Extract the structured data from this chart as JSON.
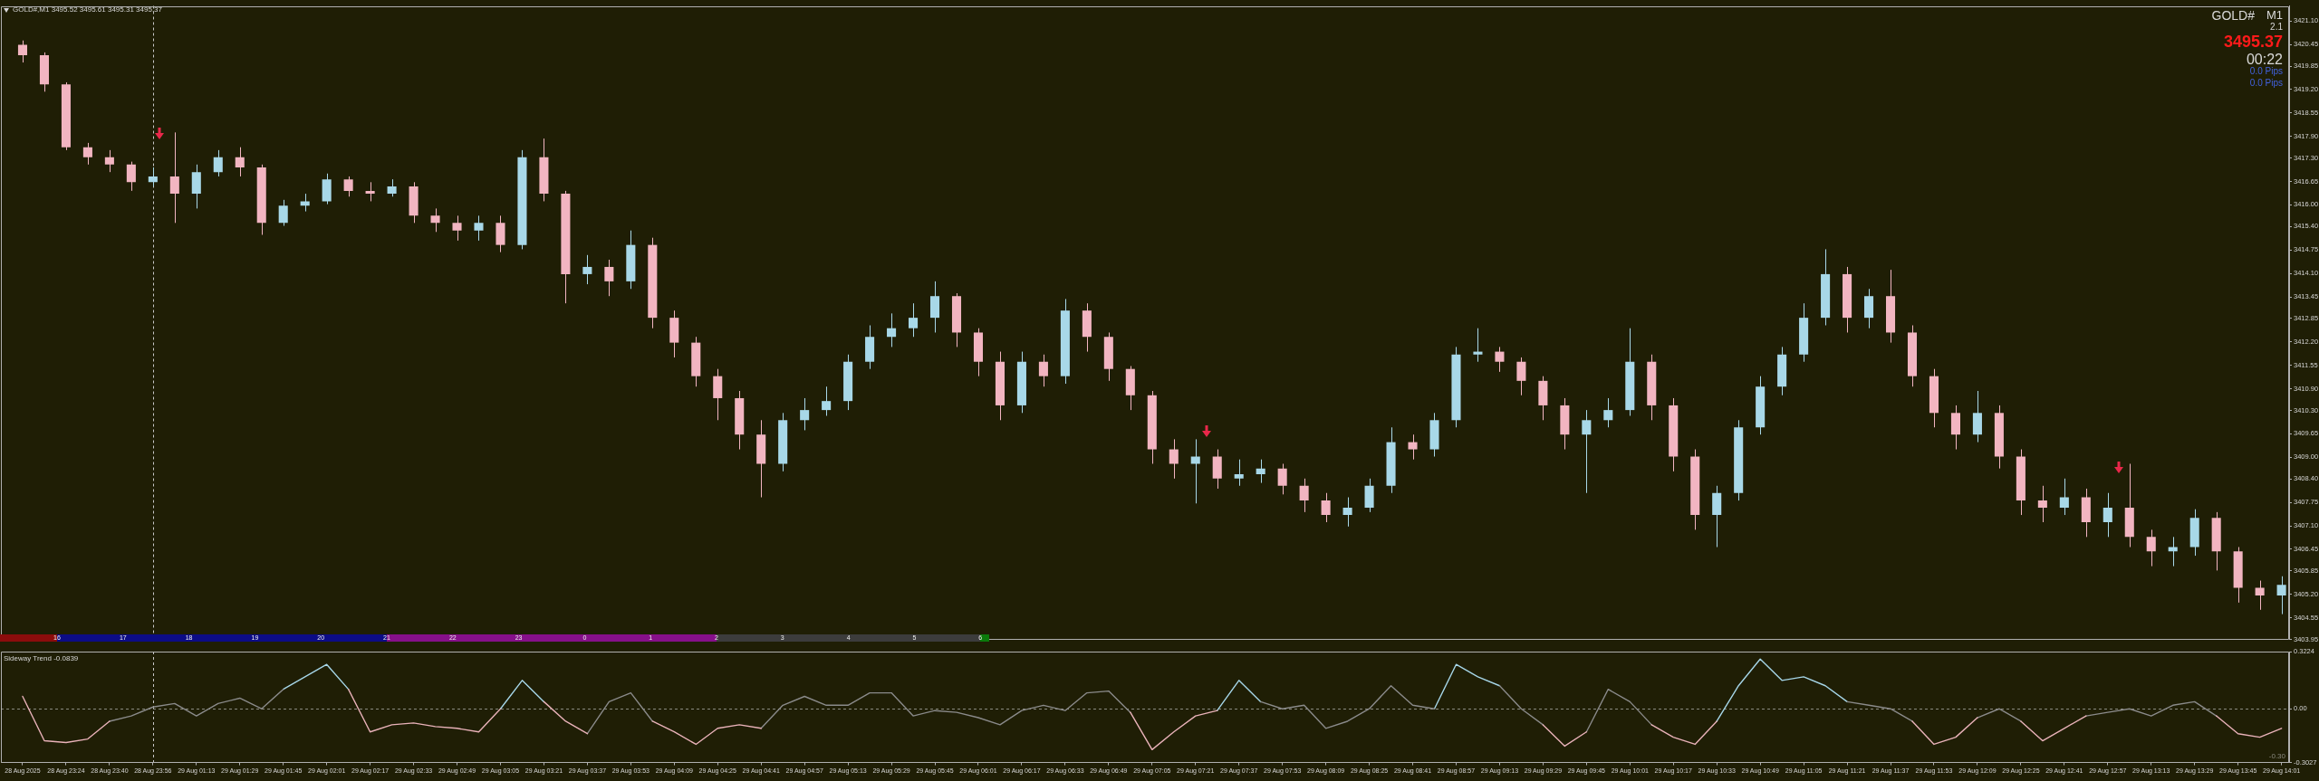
{
  "chart_data": [
    {
      "type": "candlestick",
      "title": "GOLD#,M1 3495.52 3495.61 3495.31 3495.37",
      "annotations": [
        "GOLD#",
        "M1",
        "2.1",
        "3495.37",
        "00:22",
        "0.0 Pips",
        "0.0 Pips",
        "16",
        "17",
        "18",
        "19",
        "20",
        "21",
        "22",
        "23",
        "0",
        "1",
        "2",
        "3",
        "4",
        "5",
        "6"
      ],
      "categories": [
        "28 Aug 2025",
        null,
        "28 Aug 23:24",
        null,
        "28 Aug 23:40",
        null,
        "28 Aug 23:56",
        null,
        "29 Aug 01:13",
        null,
        "29 Aug 01:29",
        null,
        "29 Aug 01:45",
        null,
        "29 Aug 02:01",
        null,
        "29 Aug 02:17",
        null,
        "29 Aug 02:33",
        null,
        "29 Aug 02:49",
        null,
        "29 Aug 03:05",
        null,
        "29 Aug 03:21",
        null,
        "29 Aug 03:37",
        null,
        "29 Aug 03:53",
        null,
        "29 Aug 04:09",
        null,
        "29 Aug 04:25",
        null,
        "29 Aug 04:41",
        null,
        "29 Aug 04:57",
        null,
        "29 Aug 05:13",
        null,
        "29 Aug 05:29",
        null,
        "29 Aug 05:45",
        null,
        "29 Aug 06:01",
        null,
        "29 Aug 06:17",
        null,
        "29 Aug 06:33",
        null,
        "29 Aug 06:49",
        null,
        "29 Aug 07:05",
        null,
        "29 Aug 07:21",
        null,
        "29 Aug 07:37",
        null,
        "29 Aug 07:53",
        null,
        "29 Aug 08:09",
        null,
        "29 Aug 08:25",
        null,
        "29 Aug 08:41",
        null,
        "29 Aug 08:57",
        null,
        "29 Aug 09:13",
        null,
        "29 Aug 09:29",
        null,
        "29 Aug 09:45",
        null,
        "29 Aug 10:01",
        null,
        "29 Aug 10:17",
        null,
        "29 Aug 10:33",
        null,
        "29 Aug 10:49",
        null,
        "29 Aug 11:05",
        null,
        "29 Aug 11:21",
        null,
        "29 Aug 11:37",
        null,
        "29 Aug 11:53",
        null,
        "29 Aug 12:09",
        null,
        "29 Aug 12:25",
        null,
        "29 Aug 12:41",
        null,
        "29 Aug 12:57",
        null,
        "29 Aug 13:13",
        null,
        "29 Aug 13:29",
        null,
        "29 Aug 13:45",
        null,
        "29 Aug 14:01"
      ],
      "ohlc": [
        [
          3420.44,
          3420.56,
          3419.95,
          3420.15
        ],
        [
          3420.15,
          3420.23,
          3419.14,
          3419.34
        ],
        [
          3419.34,
          3419.4,
          3417.52,
          3417.6
        ],
        [
          3417.6,
          3417.72,
          3417.12,
          3417.32
        ],
        [
          3417.32,
          3417.52,
          3416.91,
          3417.12
        ],
        [
          3417.12,
          3417.2,
          3416.39,
          3416.63
        ],
        [
          3416.63,
          3417.04,
          3416.51,
          3416.79
        ],
        [
          3416.79,
          3418.01,
          3415.5,
          3416.31
        ],
        [
          3416.31,
          3417.12,
          3415.9,
          3416.91
        ],
        [
          3416.91,
          3417.52,
          3416.79,
          3417.32
        ],
        [
          3417.32,
          3417.6,
          3416.79,
          3417.04
        ],
        [
          3417.04,
          3417.12,
          3415.17,
          3415.5
        ],
        [
          3415.5,
          3416.14,
          3415.42,
          3415.98
        ],
        [
          3415.98,
          3416.31,
          3415.82,
          3416.1
        ],
        [
          3416.1,
          3416.87,
          3416.02,
          3416.71
        ],
        [
          3416.71,
          3416.79,
          3416.23,
          3416.39
        ],
        [
          3416.39,
          3416.63,
          3416.1,
          3416.31
        ],
        [
          3416.31,
          3416.71,
          3416.23,
          3416.51
        ],
        [
          3416.51,
          3416.63,
          3415.5,
          3415.7
        ],
        [
          3415.7,
          3415.9,
          3415.25,
          3415.5
        ],
        [
          3415.5,
          3415.7,
          3415.01,
          3415.29
        ],
        [
          3415.29,
          3415.7,
          3415.01,
          3415.5
        ],
        [
          3415.5,
          3415.7,
          3414.69,
          3414.89
        ],
        [
          3414.89,
          3417.52,
          3414.77,
          3417.32
        ],
        [
          3417.32,
          3417.84,
          3416.1,
          3416.31
        ],
        [
          3416.31,
          3416.39,
          3413.27,
          3414.08
        ],
        [
          3414.08,
          3414.61,
          3413.8,
          3414.28
        ],
        [
          3414.28,
          3414.48,
          3413.47,
          3413.88
        ],
        [
          3413.88,
          3415.29,
          3413.67,
          3414.89
        ],
        [
          3414.89,
          3415.09,
          3412.58,
          3412.87
        ],
        [
          3412.87,
          3413.07,
          3411.77,
          3412.18
        ],
        [
          3412.18,
          3412.34,
          3410.96,
          3411.25
        ],
        [
          3411.25,
          3411.45,
          3410.03,
          3410.64
        ],
        [
          3410.64,
          3410.84,
          3409.22,
          3409.63
        ],
        [
          3409.63,
          3410.03,
          3407.89,
          3408.82
        ],
        [
          3408.82,
          3410.23,
          3408.61,
          3410.03
        ],
        [
          3410.03,
          3410.64,
          3409.75,
          3410.31
        ],
        [
          3410.31,
          3410.96,
          3410.15,
          3410.56
        ],
        [
          3410.56,
          3411.85,
          3410.31,
          3411.65
        ],
        [
          3411.65,
          3412.66,
          3411.45,
          3412.34
        ],
        [
          3412.34,
          3412.99,
          3412.06,
          3412.58
        ],
        [
          3412.58,
          3413.27,
          3412.34,
          3412.87
        ],
        [
          3412.87,
          3413.88,
          3412.46,
          3413.47
        ],
        [
          3413.47,
          3413.55,
          3412.06,
          3412.46
        ],
        [
          3412.46,
          3412.58,
          3411.25,
          3411.65
        ],
        [
          3411.65,
          3411.93,
          3410.03,
          3410.44
        ],
        [
          3410.44,
          3411.93,
          3410.23,
          3411.65
        ],
        [
          3411.65,
          3411.85,
          3410.96,
          3411.25
        ],
        [
          3411.25,
          3413.39,
          3411.04,
          3413.07
        ],
        [
          3413.07,
          3413.27,
          3411.93,
          3412.34
        ],
        [
          3412.34,
          3412.46,
          3411.12,
          3411.45
        ],
        [
          3411.45,
          3411.53,
          3410.31,
          3410.72
        ],
        [
          3410.72,
          3410.84,
          3408.82,
          3409.22
        ],
        [
          3409.22,
          3409.5,
          3408.41,
          3408.82
        ],
        [
          3408.82,
          3409.5,
          3407.72,
          3409.02
        ],
        [
          3409.02,
          3409.22,
          3408.13,
          3408.41
        ],
        [
          3408.41,
          3408.94,
          3408.21,
          3408.53
        ],
        [
          3408.53,
          3408.94,
          3408.29,
          3408.69
        ],
        [
          3408.69,
          3408.82,
          3407.97,
          3408.21
        ],
        [
          3408.21,
          3408.41,
          3407.48,
          3407.8
        ],
        [
          3407.8,
          3408.01,
          3407.2,
          3407.4
        ],
        [
          3407.4,
          3407.89,
          3407.08,
          3407.6
        ],
        [
          3407.6,
          3408.41,
          3407.48,
          3408.21
        ],
        [
          3408.21,
          3409.83,
          3408.01,
          3409.42
        ],
        [
          3409.42,
          3409.63,
          3408.94,
          3409.22
        ],
        [
          3409.22,
          3410.23,
          3409.02,
          3410.03
        ],
        [
          3410.03,
          3412.06,
          3409.83,
          3411.85
        ],
        [
          3411.85,
          3412.58,
          3411.65,
          3411.93
        ],
        [
          3411.93,
          3412.06,
          3411.37,
          3411.65
        ],
        [
          3411.65,
          3411.77,
          3410.72,
          3411.12
        ],
        [
          3411.12,
          3411.25,
          3410.03,
          3410.44
        ],
        [
          3410.44,
          3410.64,
          3409.22,
          3409.63
        ],
        [
          3409.63,
          3410.31,
          3408.01,
          3410.03
        ],
        [
          3410.03,
          3410.64,
          3409.83,
          3410.31
        ],
        [
          3410.31,
          3412.58,
          3410.15,
          3411.65
        ],
        [
          3411.65,
          3411.85,
          3410.03,
          3410.44
        ],
        [
          3410.44,
          3410.64,
          3408.61,
          3409.02
        ],
        [
          3409.02,
          3409.22,
          3406.99,
          3407.4
        ],
        [
          3407.4,
          3408.21,
          3406.51,
          3408.01
        ],
        [
          3408.01,
          3410.03,
          3407.8,
          3409.83
        ],
        [
          3409.83,
          3411.25,
          3409.63,
          3410.96
        ],
        [
          3410.96,
          3412.06,
          3410.72,
          3411.85
        ],
        [
          3411.85,
          3413.27,
          3411.65,
          3412.87
        ],
        [
          3412.87,
          3414.77,
          3412.66,
          3414.08
        ],
        [
          3414.08,
          3414.28,
          3412.46,
          3412.87
        ],
        [
          3412.87,
          3413.67,
          3412.58,
          3413.47
        ],
        [
          3413.47,
          3414.2,
          3412.18,
          3412.46
        ],
        [
          3412.46,
          3412.66,
          3410.96,
          3411.25
        ],
        [
          3411.25,
          3411.45,
          3409.83,
          3410.23
        ],
        [
          3410.23,
          3410.44,
          3409.22,
          3409.63
        ],
        [
          3409.63,
          3410.84,
          3409.42,
          3410.23
        ],
        [
          3410.23,
          3410.44,
          3408.69,
          3409.02
        ],
        [
          3409.02,
          3409.22,
          3407.4,
          3407.8
        ],
        [
          3407.8,
          3408.21,
          3407.2,
          3407.6
        ],
        [
          3407.6,
          3408.41,
          3407.4,
          3407.89
        ],
        [
          3407.89,
          3408.13,
          3406.79,
          3407.2
        ],
        [
          3407.2,
          3408.01,
          3406.79,
          3407.6
        ],
        [
          3407.6,
          3408.82,
          3406.51,
          3406.79
        ],
        [
          3406.79,
          3406.99,
          3405.98,
          3406.39
        ],
        [
          3406.39,
          3406.79,
          3405.98,
          3406.51
        ],
        [
          3406.51,
          3407.56,
          3406.27,
          3407.32
        ],
        [
          3407.32,
          3407.48,
          3405.86,
          3406.39
        ],
        [
          3406.39,
          3406.51,
          3404.97,
          3405.38
        ],
        [
          3405.38,
          3405.58,
          3404.77,
          3405.17
        ],
        [
          3405.17,
          3405.7,
          3404.65,
          3405.46
        ]
      ],
      "colors": [
        "#f2b5c1",
        "#f2b5c1",
        "#f2b5c1",
        "#f2b5c1",
        "#f2b5c1",
        "#f2b5c1",
        "#a8d8e8",
        "#f2b5c1",
        "#a8d8e8",
        "#a8d8e8",
        "#f2b5c1",
        "#f2b5c1",
        "#a8d8e8",
        "#a8d8e8",
        "#a8d8e8",
        "#f2b5c1",
        "#f2b5c1",
        "#a8d8e8",
        "#f2b5c1",
        "#f2b5c1",
        "#f2b5c1",
        "#a8d8e8",
        "#f2b5c1",
        "#a8d8e8",
        "#f2b5c1",
        "#f2b5c1",
        "#a8d8e8",
        "#f2b5c1",
        "#a8d8e8",
        "#f2b5c1",
        "#f2b5c1",
        "#f2b5c1",
        "#f2b5c1",
        "#f2b5c1",
        "#f2b5c1",
        "#a8d8e8",
        "#a8d8e8",
        "#a8d8e8",
        "#a8d8e8",
        "#a8d8e8",
        "#a8d8e8",
        "#a8d8e8",
        "#a8d8e8",
        "#f2b5c1",
        "#f2b5c1",
        "#f2b5c1",
        "#a8d8e8",
        "#f2b5c1",
        "#a8d8e8",
        "#f2b5c1",
        "#f2b5c1",
        "#f2b5c1",
        "#f2b5c1",
        "#f2b5c1",
        "#a8d8e8",
        "#f2b5c1",
        "#a8d8e8",
        "#a8d8e8",
        "#f2b5c1",
        "#f2b5c1",
        "#f2b5c1",
        "#a8d8e8",
        "#a8d8e8",
        "#a8d8e8",
        "#f2b5c1",
        "#a8d8e8",
        "#a8d8e8",
        "#a8d8e8",
        "#f2b5c1",
        "#f2b5c1",
        "#f2b5c1",
        "#f2b5c1",
        "#a8d8e8",
        "#a8d8e8",
        "#a8d8e8",
        "#f2b5c1",
        "#f2b5c1",
        "#f2b5c1",
        "#a8d8e8",
        "#a8d8e8",
        "#a8d8e8",
        "#a8d8e8",
        "#a8d8e8",
        "#a8d8e8",
        "#f2b5c1",
        "#a8d8e8",
        "#f2b5c1",
        "#f2b5c1",
        "#f2b5c1",
        "#f2b5c1",
        "#a8d8e8",
        "#f2b5c1",
        "#f2b5c1",
        "#f2b5c1",
        "#a8d8e8",
        "#f2b5c1",
        "#a8d8e8",
        "#f2b5c1",
        "#f2b5c1",
        "#a8d8e8",
        "#a8d8e8",
        "#f2b5c1",
        "#f2b5c1",
        "#f2b5c1",
        "#a8d8e8"
      ],
      "ylim": [
        3403.95,
        3421.52
      ],
      "yticks": [
        {
          "value": 3421.1,
          "label": "3421.10"
        },
        3420.45,
        3419.85,
        {
          "value": 3419.2,
          "label": "3419.20"
        },
        3418.55,
        {
          "value": 3417.9,
          "label": "3417.90"
        },
        {
          "value": 3417.3,
          "label": "3417.30"
        },
        3416.65,
        {
          "value": 3416,
          "label": "3416.00"
        },
        {
          "value": 3415.4,
          "label": "3415.40"
        },
        3414.75,
        {
          "value": 3414.1,
          "label": "3414.10"
        },
        3413.45,
        3412.85,
        {
          "value": 3412.2,
          "label": "3412.20"
        },
        3411.55,
        {
          "value": 3410.9,
          "label": "3410.90"
        },
        {
          "value": 3410.3,
          "label": "3410.30"
        },
        3409.65,
        {
          "value": 3409,
          "label": "3409.00"
        },
        {
          "value": 3408.4,
          "label": "3408.40"
        },
        3407.75,
        {
          "value": 3407.1,
          "label": "3407.10"
        },
        3406.45,
        3405.85,
        {
          "value": 3405.2,
          "label": "3405.20"
        },
        3404.55,
        3403.95
      ],
      "tick_labels": "y",
      "ref_lines": [
        {
          "axis": "x",
          "value": "28 Aug 23:56",
          "color": "#c8c8c8",
          "line_style": "dashed"
        }
      ]
    },
    {
      "type": "line",
      "title": "Sideway Trend -0.0839",
      "categories": [
        "28 Aug 2025",
        null,
        "28 Aug 23:24",
        null,
        "28 Aug 23:40",
        null,
        "28 Aug 23:56",
        null,
        "29 Aug 01:13",
        null,
        "29 Aug 01:29",
        null,
        "29 Aug 01:45",
        null,
        "29 Aug 02:01",
        null,
        "29 Aug 02:17",
        null,
        "29 Aug 02:33",
        null,
        "29 Aug 02:49",
        null,
        "29 Aug 03:05",
        null,
        "29 Aug 03:21",
        null,
        "29 Aug 03:37",
        null,
        "29 Aug 03:53",
        null,
        "29 Aug 04:09",
        null,
        "29 Aug 04:25",
        null,
        "29 Aug 04:41",
        null,
        "29 Aug 04:57",
        null,
        "29 Aug 05:13",
        null,
        "29 Aug 05:29",
        null,
        "29 Aug 05:45",
        null,
        "29 Aug 06:01",
        null,
        "29 Aug 06:17",
        null,
        "29 Aug 06:33",
        null,
        "29 Aug 06:49",
        null,
        "29 Aug 07:05",
        null,
        "29 Aug 07:21",
        null,
        "29 Aug 07:37",
        null,
        "29 Aug 07:53",
        null,
        "29 Aug 08:09",
        null,
        "29 Aug 08:25",
        null,
        "29 Aug 08:41",
        null,
        "29 Aug 08:57",
        null,
        "29 Aug 09:13",
        null,
        "29 Aug 09:29",
        null,
        "29 Aug 09:45",
        null,
        "29 Aug 10:01",
        null,
        "29 Aug 10:17",
        null,
        "29 Aug 10:33",
        null,
        "29 Aug 10:49",
        null,
        "29 Aug 11:05",
        null,
        "29 Aug 11:21",
        null,
        "29 Aug 11:37",
        null,
        "29 Aug 11:53",
        null,
        "29 Aug 12:09",
        null,
        "29 Aug 12:25",
        null,
        "29 Aug 12:41",
        null,
        "29 Aug 12:57",
        null,
        "29 Aug 13:13",
        null,
        "29 Aug 13:29",
        null,
        "29 Aug 13:45",
        null,
        "29 Aug 14:01"
      ],
      "series": [
        {
          "color": "#e9b2b9",
          "values": [
            0.07,
            -0.18,
            -0.19,
            -0.17,
            -0.07,
            null,
            null,
            null,
            null,
            null,
            null,
            null,
            null,
            null,
            null,
            0.11,
            -0.13,
            -0.09,
            -0.08,
            -0.1,
            -0.11,
            -0.13,
            0,
            null,
            0.04,
            -0.07,
            -0.14,
            null,
            null,
            -0.07,
            -0.13,
            -0.2,
            -0.11,
            -0.09,
            -0.11,
            null,
            null,
            null,
            null,
            null,
            null,
            null,
            null,
            null,
            null,
            null,
            null,
            null,
            null,
            null,
            null,
            -0.02,
            -0.23,
            -0.13,
            -0.04,
            -0.01,
            null,
            null,
            null,
            null,
            null,
            null,
            null,
            null,
            null,
            null,
            null,
            null,
            null,
            null,
            -0.09,
            -0.21,
            -0.13,
            null,
            null,
            -0.09,
            -0.16,
            -0.2,
            -0.07,
            null,
            null,
            null,
            null,
            null,
            null,
            null,
            null,
            -0.07,
            -0.2,
            -0.16,
            -0.05,
            null,
            -0.07,
            -0.18,
            -0.11,
            -0.04,
            null,
            null,
            null,
            null,
            null,
            -0.04,
            -0.14,
            -0.16,
            -0.11
          ]
        },
        {
          "color": "#8a8a8a",
          "values": [
            null,
            null,
            null,
            null,
            -0.07,
            -0.04,
            0.01,
            0.03,
            -0.04,
            0.03,
            0.06,
            0,
            0.11,
            null,
            null,
            null,
            null,
            null,
            null,
            null,
            null,
            null,
            null,
            null,
            null,
            null,
            -0.14,
            0.04,
            0.09,
            -0.07,
            null,
            null,
            null,
            null,
            -0.11,
            0.02,
            0.07,
            0.02,
            0.02,
            0.09,
            0.09,
            -0.04,
            -0.01,
            -0.02,
            -0.05,
            -0.09,
            -0.01,
            0.02,
            -0.01,
            0.09,
            0.1,
            -0.02,
            null,
            null,
            null,
            null,
            null,
            0.04,
            0,
            0.02,
            -0.11,
            -0.07,
            0,
            0.13,
            0.02,
            0,
            null,
            null,
            0.13,
            0,
            -0.09,
            null,
            -0.13,
            0.11,
            0.04,
            -0.09,
            null,
            null,
            null,
            null,
            null,
            null,
            null,
            null,
            0.04,
            0.02,
            0,
            -0.07,
            null,
            null,
            -0.05,
            0,
            -0.07,
            null,
            null,
            -0.04,
            -0.02,
            0,
            -0.04,
            0.02,
            0.04,
            -0.04,
            null,
            null,
            null
          ]
        },
        {
          "color": "#a6d6e8",
          "values": [
            null,
            null,
            null,
            null,
            null,
            null,
            null,
            null,
            null,
            null,
            null,
            null,
            0.11,
            0.18,
            0.25,
            0.11,
            null,
            null,
            null,
            null,
            null,
            null,
            0,
            0.16,
            0.04,
            null,
            null,
            null,
            null,
            null,
            null,
            null,
            null,
            null,
            null,
            null,
            null,
            null,
            null,
            null,
            null,
            null,
            null,
            null,
            null,
            null,
            null,
            null,
            null,
            null,
            null,
            null,
            null,
            null,
            null,
            -0.01,
            0.16,
            0.04,
            null,
            null,
            null,
            null,
            null,
            null,
            null,
            0,
            0.25,
            0.18,
            0.13,
            null,
            null,
            null,
            null,
            null,
            null,
            null,
            null,
            null,
            -0.07,
            0.13,
            0.28,
            0.16,
            0.18,
            0.13,
            0.04,
            null,
            null,
            null,
            null,
            null,
            null,
            null,
            null,
            null,
            null,
            null,
            null,
            null,
            null,
            null,
            null,
            null,
            null,
            null,
            null
          ]
        }
      ],
      "ylim": [
        -0.3027,
        0.3224
      ],
      "yticks": [
        0.3224,
        {
          "value": 0,
          "label": "0.00"
        },
        -0.3027
      ],
      "ref_lines": [
        {
          "axis": "x",
          "value": "28 Aug 23:56",
          "color": "#c8c8c8",
          "line_style": "dashed"
        },
        {
          "axis": "y",
          "value": 0,
          "color": "#8a8a80",
          "line_style": "dashed"
        },
        {
          "axis": "y",
          "value": -0.3,
          "label": "-0.30",
          "color": "#8a8a80",
          "line_style": "dashed"
        }
      ]
    }
  ]
}
